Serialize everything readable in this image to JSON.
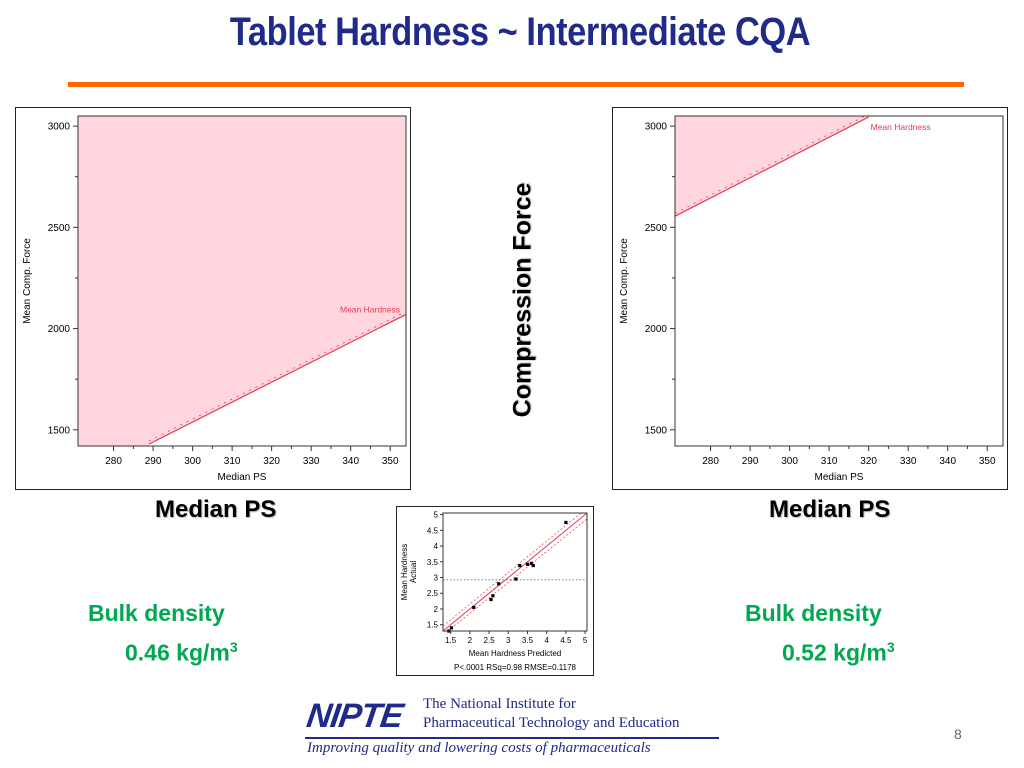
{
  "slide": {
    "title": "Tablet Hardness ~ Intermediate CQA",
    "vertical_label": "Compression Force",
    "left_xlabel_big": "Median PS",
    "right_xlabel_big": "Median PS",
    "left_bulk_line1": "Bulk density",
    "left_bulk_value": "0.46 kg/m",
    "left_bulk_sup": "3",
    "right_bulk_line1": "Bulk density",
    "right_bulk_value": "0.52 kg/m",
    "right_bulk_sup": "3",
    "page_number": "8"
  },
  "logo": {
    "mark": "NIPTE",
    "institute_line1": "The National Institute for",
    "institute_line2": "Pharmaceutical Technology and Education",
    "tagline": "Improving quality and lowering costs of pharmaceuticals"
  },
  "colors": {
    "title": "#1f2a8a",
    "rule": "#ff6600",
    "bulk": "#00a84f",
    "shade": "#ffd6de",
    "contour": "#e8384f",
    "mean_line": "#4a8ad8"
  },
  "chart_data": [
    {
      "type": "area",
      "name": "left-contour",
      "xlabel": "Median PS",
      "ylabel": "Mean Comp. Force",
      "xlim": [
        271,
        354
      ],
      "ylim": [
        1420,
        3050
      ],
      "xticks": [
        280,
        290,
        300,
        310,
        320,
        330,
        340,
        350
      ],
      "yticks": [
        1500,
        2000,
        2500,
        3000
      ],
      "contour_label": "Mean Hardness",
      "contour": [
        [
          289,
          1430
        ],
        [
          354,
          2070
        ]
      ],
      "shaded": "above"
    },
    {
      "type": "area",
      "name": "right-contour",
      "xlabel": "Median PS",
      "ylabel": "Mean Comp. Force",
      "xlim": [
        271,
        354
      ],
      "ylim": [
        1420,
        3050
      ],
      "xticks": [
        280,
        290,
        300,
        310,
        320,
        330,
        340,
        350
      ],
      "yticks": [
        1500,
        2000,
        2500,
        3000
      ],
      "contour_label": "Mean Hardness",
      "contour": [
        [
          271,
          2555
        ],
        [
          320,
          3045
        ]
      ],
      "shaded": "above"
    },
    {
      "type": "scatter",
      "name": "actual-vs-predicted",
      "xlabel": "Mean Hardness Predicted",
      "ylabel": "Mean Hardness Actual",
      "xlim": [
        1.3,
        5.05
      ],
      "ylim": [
        1.3,
        5.05
      ],
      "xticks": [
        "1.5",
        "2",
        "2.5",
        "3",
        "3.5",
        "4",
        "4.5",
        "5"
      ],
      "yticks": [
        "1.5",
        "2",
        "2.5",
        "3",
        "3.5",
        "4",
        "4.5",
        "5"
      ],
      "mean_y": 2.93,
      "fit_line": [
        [
          1.3,
          1.3
        ],
        [
          5.05,
          5.05
        ]
      ],
      "stats": "P<.0001 RSq=0.98 RMSE=0.1178",
      "points": [
        [
          1.45,
          1.3
        ],
        [
          1.52,
          1.4
        ],
        [
          2.1,
          2.05
        ],
        [
          2.55,
          2.3
        ],
        [
          2.6,
          2.42
        ],
        [
          2.75,
          2.8
        ],
        [
          3.2,
          2.95
        ],
        [
          3.3,
          3.38
        ],
        [
          3.5,
          3.42
        ],
        [
          3.6,
          3.45
        ],
        [
          3.65,
          3.38
        ],
        [
          4.5,
          4.75
        ]
      ]
    }
  ]
}
